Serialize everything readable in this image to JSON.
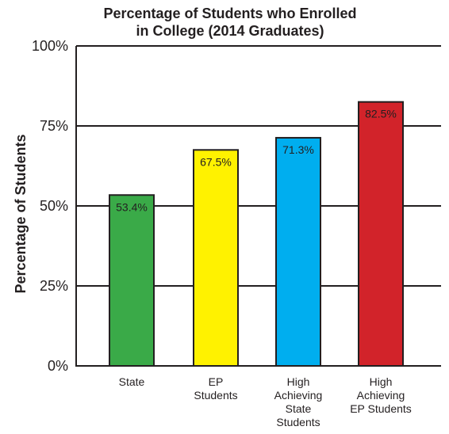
{
  "chart_data": {
    "type": "bar",
    "title": "Percentage of Students who Enrolled\nin College (2014 Graduates)",
    "xlabel": "",
    "ylabel": "Percentage of Students",
    "ylim": [
      0,
      100
    ],
    "yticks": [
      0,
      25,
      50,
      75,
      100
    ],
    "ytick_labels": [
      "0%",
      "25%",
      "50%",
      "75%",
      "100%"
    ],
    "grid": true,
    "categories": [
      "State",
      "EP\nStudents",
      "High\nAchieving\nState\nStudents",
      "High\nAchieving\nEP Students"
    ],
    "values": [
      53.4,
      67.5,
      71.3,
      82.5
    ],
    "data_labels": [
      "53.4%",
      "67.5%",
      "71.3%",
      "82.5%"
    ],
    "colors": [
      "#3aaa48",
      "#fff200",
      "#00aeef",
      "#d2232a"
    ]
  }
}
